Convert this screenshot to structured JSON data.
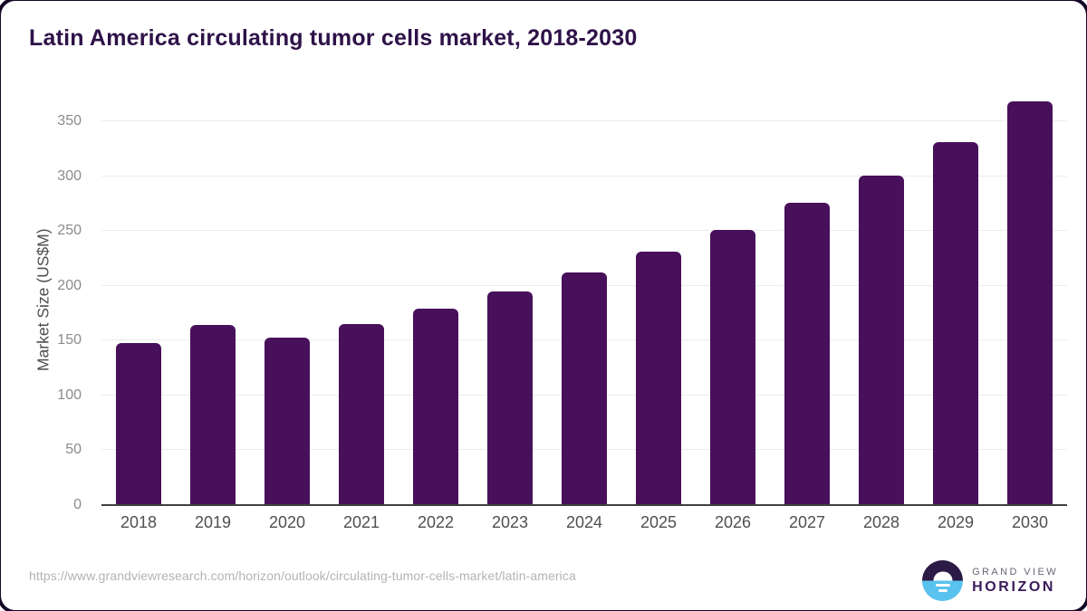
{
  "title": "Latin America circulating tumor cells market, 2018-2030",
  "chart_data": {
    "type": "bar",
    "title": "Latin America circulating tumor cells market, 2018-2030",
    "categories": [
      "2018",
      "2019",
      "2020",
      "2021",
      "2022",
      "2023",
      "2024",
      "2025",
      "2026",
      "2027",
      "2028",
      "2029",
      "2030"
    ],
    "values": [
      148,
      164,
      153,
      165,
      179,
      195,
      212,
      231,
      251,
      276,
      301,
      331,
      368
    ],
    "xlabel": "",
    "ylabel": "Market Size (US$M)",
    "ylim": [
      0,
      375
    ],
    "yticks": [
      0,
      50,
      100,
      150,
      200,
      250,
      300,
      350
    ],
    "grid": true,
    "legend_position": "none",
    "bar_color": "#48105a"
  },
  "footer": {
    "source_url": "https://www.grandviewresearch.com/horizon/outlook/circulating-tumor-cells-market/latin-america",
    "logo": {
      "line1": "GRAND VIEW",
      "line2": "HORIZON"
    }
  },
  "colors": {
    "bar": "#48105a",
    "title_text": "#2e1248",
    "axis_line": "#3f3f3f",
    "gridline": "#ececec",
    "tick_label": "#8b8b8b",
    "axis_label": "#4f4f4f",
    "url_text": "#b3b3b3",
    "logo_dark_half": "#2c1a47",
    "logo_blue_half": "#5ac2ee",
    "logo_horizon_text": "#3a1b5a"
  }
}
